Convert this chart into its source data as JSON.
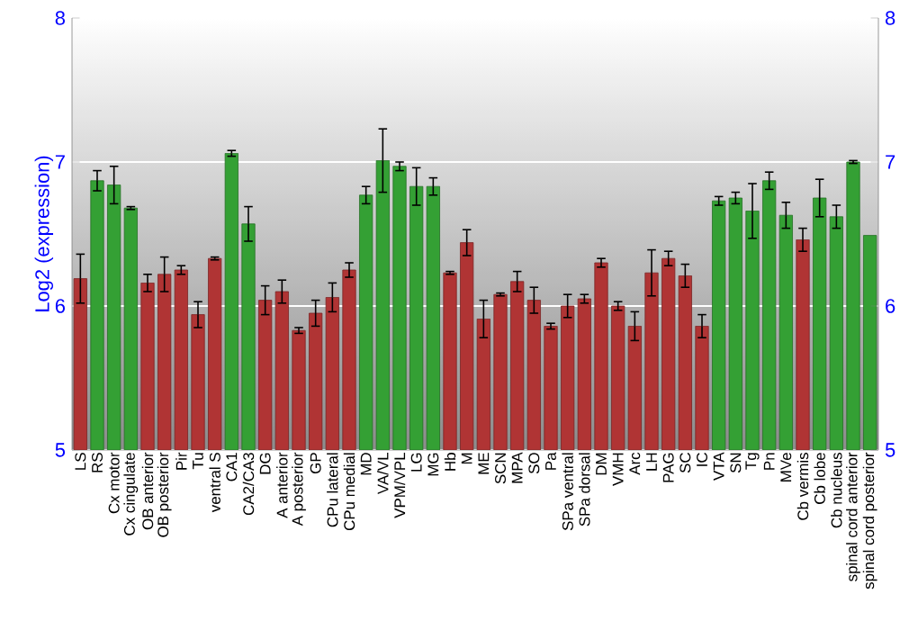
{
  "chart_data": {
    "type": "bar",
    "ylabel": "Log2 (expression)",
    "categories": [
      "LS",
      "RS",
      "Cx motor",
      "Cx cingulate",
      "OB anterior",
      "OB posterior",
      "Pir",
      "Tu",
      "ventral S",
      "CA1",
      "CA2/CA3",
      "DG",
      "A anterior",
      "A posterior",
      "GP",
      "CPu lateral",
      "CPu medial",
      "MD",
      "VA/VL",
      "VPM/VPL",
      "LG",
      "MG",
      "Hb",
      "M",
      "ME",
      "SCN",
      "MPA",
      "SO",
      "Pa",
      "SPa ventral",
      "SPa dorsal",
      "DM",
      "VMH",
      "Arc",
      "LH",
      "PAG",
      "SC",
      "IC",
      "VTA",
      "SN",
      "Tg",
      "Pn",
      "MVe",
      "Cb vermis",
      "Cb lobe",
      "Cb nucleus",
      "spinal cord anterior",
      "spinal cord posterior"
    ],
    "values": [
      6.19,
      6.87,
      6.84,
      6.68,
      6.16,
      6.22,
      6.25,
      5.94,
      6.33,
      7.06,
      6.57,
      6.04,
      6.1,
      5.83,
      5.95,
      6.06,
      6.25,
      6.77,
      7.01,
      6.97,
      6.83,
      6.83,
      6.23,
      6.44,
      5.91,
      6.08,
      6.17,
      6.04,
      5.86,
      6.0,
      6.05,
      6.3,
      6.0,
      5.86,
      6.23,
      6.33,
      6.21,
      5.86,
      6.73,
      6.75,
      6.66,
      6.87,
      6.63,
      6.46,
      6.75,
      6.62,
      7.0,
      6.49
    ],
    "errors": [
      0.17,
      0.07,
      0.13,
      0.01,
      0.06,
      0.12,
      0.03,
      0.09,
      0.01,
      0.02,
      0.12,
      0.1,
      0.08,
      0.02,
      0.09,
      0.1,
      0.05,
      0.06,
      0.22,
      0.03,
      0.13,
      0.06,
      0.01,
      0.09,
      0.13,
      0.01,
      0.07,
      0.09,
      0.02,
      0.08,
      0.03,
      0.03,
      0.03,
      0.1,
      0.16,
      0.05,
      0.08,
      0.08,
      0.03,
      0.04,
      0.19,
      0.06,
      0.09,
      0.08,
      0.13,
      0.08,
      0.01,
      null
    ],
    "colors": [
      "#b03434",
      "#34a034",
      "#34a034",
      "#34a034",
      "#b03434",
      "#b03434",
      "#b03434",
      "#b03434",
      "#b03434",
      "#34a034",
      "#34a034",
      "#b03434",
      "#b03434",
      "#b03434",
      "#b03434",
      "#b03434",
      "#b03434",
      "#34a034",
      "#34a034",
      "#34a034",
      "#34a034",
      "#34a034",
      "#b03434",
      "#b03434",
      "#b03434",
      "#b03434",
      "#b03434",
      "#b03434",
      "#b03434",
      "#b03434",
      "#b03434",
      "#b03434",
      "#b03434",
      "#b03434",
      "#b03434",
      "#b03434",
      "#b03434",
      "#b03434",
      "#34a034",
      "#34a034",
      "#34a034",
      "#34a034",
      "#34a034",
      "#b03434",
      "#34a034",
      "#34a034",
      "#34a034",
      "#34a034"
    ],
    "ylim": [
      5,
      8
    ],
    "yticks": [
      5,
      6,
      7,
      8
    ],
    "y2lim": [
      5,
      8
    ],
    "y2ticks": [
      5,
      6,
      7,
      8
    ],
    "grid": "y"
  }
}
